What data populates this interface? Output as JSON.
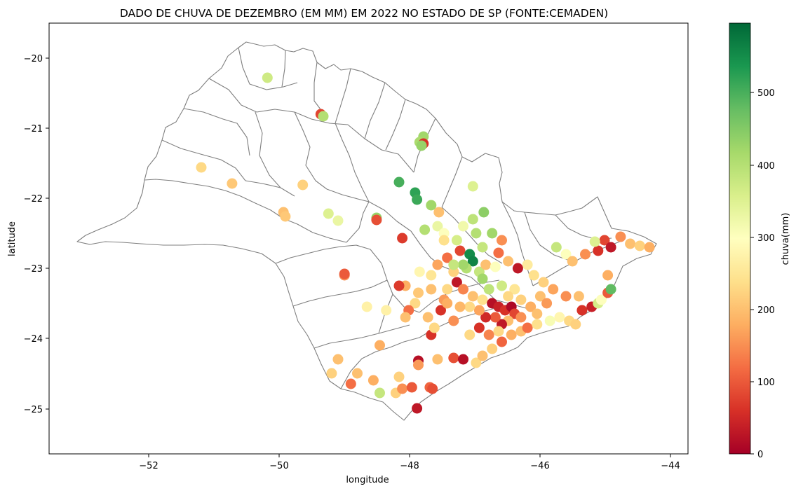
{
  "chart_data": {
    "type": "scatter",
    "title": "DADO DE CHUVA DE DEZEMBRO (EM MM) EM 2022 NO ESTADO DE SP  (FONTE:CEMADEN)",
    "xlabel": "longitude",
    "ylabel": "latitude",
    "xlim": [
      -53.65,
      -43.7
    ],
    "ylim": [
      -25.65,
      -19.5
    ],
    "xticks": [
      -52,
      -50,
      -48,
      -46,
      -44
    ],
    "xtick_labels": [
      "−52",
      "−50",
      "−48",
      "−46",
      "−44"
    ],
    "yticks": [
      -20,
      -21,
      -22,
      -23,
      -24,
      -25
    ],
    "ytick_labels": [
      "−20",
      "−21",
      "−22",
      "−23",
      "−24",
      "−25"
    ],
    "grid": false,
    "colormap": "RdYlGn",
    "colorbar": {
      "label": "chuva(mm)",
      "min": 0,
      "max": 595,
      "ticks": [
        0,
        100,
        200,
        300,
        400,
        500
      ],
      "tick_labels": [
        "0",
        "100",
        "200",
        "300",
        "400",
        "500"
      ]
    },
    "map_background": "outline of São Paulo state with regional division boundaries (gray)",
    "points": [
      [
        -50.25,
        -20.28,
        370
      ],
      [
        -49.42,
        -20.8,
        80
      ],
      [
        -49.38,
        -20.83,
        400
      ],
      [
        -47.82,
        -21.12,
        420
      ],
      [
        -47.88,
        -21.2,
        410
      ],
      [
        -47.82,
        -21.22,
        60
      ],
      [
        -47.85,
        -21.25,
        430
      ],
      [
        -51.28,
        -21.56,
        230
      ],
      [
        -50.8,
        -21.79,
        210
      ],
      [
        -49.7,
        -21.81,
        220
      ],
      [
        -48.2,
        -21.77,
        500
      ],
      [
        -47.05,
        -21.83,
        350
      ],
      [
        -47.95,
        -21.92,
        520
      ],
      [
        -47.92,
        -22.02,
        510
      ],
      [
        -50.0,
        -22.2,
        200
      ],
      [
        -49.97,
        -22.26,
        210
      ],
      [
        -49.3,
        -22.22,
        350
      ],
      [
        -49.15,
        -22.32,
        330
      ],
      [
        -48.55,
        -22.28,
        430
      ],
      [
        -48.55,
        -22.31,
        90
      ],
      [
        -47.7,
        -22.1,
        420
      ],
      [
        -47.58,
        -22.2,
        200
      ],
      [
        -47.6,
        -22.4,
        330
      ],
      [
        -47.8,
        -22.45,
        400
      ],
      [
        -47.5,
        -22.5,
        300
      ],
      [
        -47.2,
        -22.4,
        320
      ],
      [
        -47.05,
        -22.3,
        390
      ],
      [
        -46.88,
        -22.2,
        440
      ],
      [
        -46.75,
        -22.5,
        420
      ],
      [
        -47.0,
        -22.5,
        400
      ],
      [
        -46.9,
        -22.7,
        380
      ],
      [
        -46.6,
        -22.6,
        150
      ],
      [
        -46.65,
        -22.78,
        120
      ],
      [
        -47.25,
        -22.75,
        80
      ],
      [
        -47.1,
        -22.8,
        550
      ],
      [
        -47.05,
        -22.9,
        560
      ],
      [
        -47.15,
        -23.0,
        400
      ],
      [
        -46.95,
        -23.05,
        380
      ],
      [
        -46.85,
        -22.95,
        200
      ],
      [
        -47.35,
        -23.05,
        220
      ],
      [
        -47.45,
        -22.85,
        120
      ],
      [
        -47.6,
        -22.95,
        170
      ],
      [
        -47.7,
        -23.1,
        250
      ],
      [
        -47.3,
        -23.2,
        30
      ],
      [
        -47.2,
        -23.3,
        140
      ],
      [
        -47.05,
        -23.4,
        200
      ],
      [
        -46.9,
        -23.45,
        240
      ],
      [
        -46.75,
        -23.5,
        20
      ],
      [
        -46.65,
        -23.55,
        40
      ],
      [
        -46.55,
        -23.6,
        60
      ],
      [
        -46.45,
        -23.55,
        10
      ],
      [
        -46.4,
        -23.65,
        80
      ],
      [
        -46.3,
        -23.7,
        150
      ],
      [
        -46.5,
        -23.75,
        200
      ],
      [
        -46.6,
        -23.8,
        30
      ],
      [
        -46.7,
        -23.7,
        100
      ],
      [
        -46.85,
        -23.7,
        50
      ],
      [
        -46.95,
        -23.6,
        170
      ],
      [
        -47.1,
        -23.55,
        230
      ],
      [
        -47.25,
        -23.55,
        190
      ],
      [
        -47.5,
        -23.45,
        160
      ],
      [
        -47.45,
        -23.3,
        230
      ],
      [
        -47.7,
        -23.3,
        200
      ],
      [
        -47.9,
        -23.35,
        210
      ],
      [
        -48.1,
        -23.25,
        180
      ],
      [
        -48.2,
        -23.25,
        70
      ],
      [
        -48.15,
        -22.57,
        70
      ],
      [
        -47.88,
        -23.05,
        280
      ],
      [
        -47.95,
        -23.5,
        230
      ],
      [
        -48.05,
        -23.6,
        120
      ],
      [
        -48.1,
        -23.7,
        200
      ],
      [
        -48.4,
        -23.6,
        270
      ],
      [
        -48.5,
        -24.1,
        180
      ],
      [
        -47.7,
        -23.95,
        60
      ],
      [
        -47.9,
        -24.32,
        20
      ],
      [
        -47.72,
        -24.7,
        110
      ],
      [
        -47.68,
        -24.72,
        90
      ],
      [
        -47.6,
        -24.3,
        200
      ],
      [
        -47.35,
        -24.28,
        90
      ],
      [
        -47.2,
        -24.3,
        20
      ],
      [
        -47.0,
        -24.35,
        230
      ],
      [
        -46.9,
        -24.25,
        200
      ],
      [
        -46.75,
        -24.15,
        220
      ],
      [
        -46.6,
        -24.05,
        110
      ],
      [
        -46.45,
        -23.95,
        180
      ],
      [
        -46.3,
        -23.9,
        200
      ],
      [
        -46.2,
        -23.85,
        120
      ],
      [
        -46.05,
        -23.8,
        240
      ],
      [
        -45.85,
        -23.75,
        310
      ],
      [
        -45.7,
        -23.7,
        280
      ],
      [
        -45.55,
        -23.75,
        230
      ],
      [
        -45.45,
        -23.8,
        220
      ],
      [
        -45.35,
        -23.6,
        60
      ],
      [
        -45.2,
        -23.55,
        40
      ],
      [
        -45.1,
        -23.5,
        360
      ],
      [
        -45.05,
        -23.45,
        300
      ],
      [
        -44.95,
        -23.35,
        100
      ],
      [
        -44.9,
        -23.3,
        480
      ],
      [
        -45.4,
        -23.4,
        200
      ],
      [
        -45.6,
        -23.4,
        150
      ],
      [
        -45.8,
        -23.3,
        170
      ],
      [
        -45.95,
        -23.2,
        220
      ],
      [
        -46.1,
        -23.1,
        240
      ],
      [
        -46.2,
        -22.95,
        260
      ],
      [
        -46.35,
        -23.0,
        30
      ],
      [
        -46.5,
        -22.9,
        200
      ],
      [
        -45.75,
        -22.7,
        380
      ],
      [
        -45.6,
        -22.8,
        300
      ],
      [
        -45.5,
        -22.9,
        200
      ],
      [
        -45.3,
        -22.8,
        150
      ],
      [
        -45.1,
        -22.75,
        60
      ],
      [
        -45.0,
        -22.6,
        80
      ],
      [
        -44.9,
        -22.7,
        30
      ],
      [
        -44.75,
        -22.55,
        150
      ],
      [
        -44.6,
        -22.65,
        200
      ],
      [
        -44.45,
        -22.68,
        220
      ],
      [
        -44.3,
        -22.7,
        180
      ],
      [
        -45.15,
        -22.62,
        350
      ],
      [
        -44.95,
        -23.1,
        180
      ],
      [
        -48.85,
        -24.5,
        200
      ],
      [
        -48.95,
        -24.65,
        120
      ],
      [
        -49.15,
        -24.3,
        200
      ],
      [
        -49.25,
        -24.5,
        220
      ],
      [
        -48.6,
        -24.6,
        180
      ],
      [
        -48.5,
        -24.78,
        380
      ],
      [
        -48.25,
        -24.78,
        220
      ],
      [
        -48.15,
        -24.72,
        150
      ],
      [
        -48.0,
        -24.7,
        100
      ],
      [
        -47.9,
        -24.38,
        160
      ],
      [
        -47.92,
        -25.0,
        30
      ],
      [
        -48.2,
        -24.55,
        220
      ],
      [
        -47.55,
        -23.6,
        60
      ],
      [
        -47.45,
        -23.5,
        180
      ],
      [
        -46.8,
        -23.3,
        390
      ],
      [
        -46.6,
        -23.25,
        370
      ],
      [
        -46.9,
        -23.15,
        420
      ],
      [
        -47.2,
        -22.95,
        420
      ],
      [
        -47.35,
        -22.95,
        380
      ],
      [
        -46.7,
        -22.98,
        300
      ],
      [
        -46.4,
        -23.3,
        250
      ],
      [
        -46.3,
        -23.45,
        220
      ],
      [
        -46.15,
        -23.55,
        180
      ],
      [
        -46.0,
        -23.4,
        200
      ],
      [
        -46.5,
        -23.4,
        230
      ],
      [
        -46.8,
        -23.95,
        140
      ],
      [
        -46.65,
        -23.9,
        230
      ],
      [
        -46.95,
        -23.85,
        60
      ],
      [
        -47.1,
        -23.95,
        230
      ],
      [
        -47.35,
        -23.75,
        150
      ],
      [
        -47.65,
        -23.85,
        230
      ],
      [
        -47.75,
        -23.7,
        200
      ],
      [
        -46.05,
        -23.65,
        200
      ],
      [
        -45.9,
        -23.5,
        160
      ],
      [
        -49.05,
        -23.1,
        150
      ],
      [
        -49.05,
        -23.08,
        100
      ],
      [
        -48.7,
        -23.55,
        270
      ],
      [
        -47.5,
        -22.6,
        240
      ],
      [
        -47.3,
        -22.6,
        360
      ]
    ]
  }
}
